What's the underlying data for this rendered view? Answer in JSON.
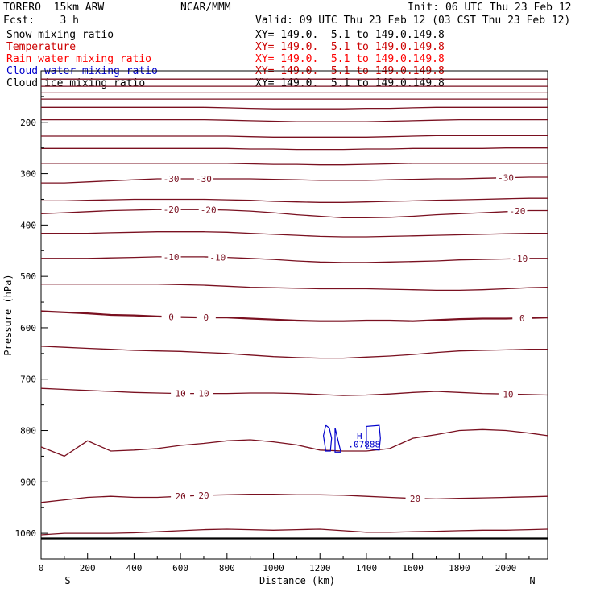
{
  "header": {
    "model": "TORERO  15km ARW",
    "center": "NCAR/MMM",
    "init": "Init: 06 UTC Thu 23 Feb 12",
    "fcst": "Fcst:    3 h",
    "valid": "Valid: 09 UTC Thu 23 Feb 12 (03 CST Thu 23 Feb 12)"
  },
  "legend": [
    {
      "label": "Snow mixing ratio",
      "xy": "XY= 149.0.  5.1 to 149.0.149.8",
      "color": "#000000"
    },
    {
      "label": "Temperature",
      "xy": "XY= 149.0.  5.1 to 149.0.149.8",
      "color": "#cc0000"
    },
    {
      "label": "Rain water mixing ratio",
      "xy": "XY= 149.0.  5.1 to 149.0.149.8",
      "color": "#ff0000"
    },
    {
      "label": "Cloud water mixing ratio",
      "xy": "XY= 149.0.  5.1 to 149.0.149.8",
      "color": "#0000cc"
    },
    {
      "label": "Cloud ice mixing ratio",
      "xy": "XY= 149.0.  5.1 to 149.0.149.8",
      "color": "#000000"
    }
  ],
  "chart_data": {
    "type": "contour-cross-section",
    "xlabel": "Distance (km)",
    "ylabel": "Pressure (hPa)",
    "xlim": [
      0,
      2180
    ],
    "ylim": [
      1050,
      100
    ],
    "x_ticks": [
      0,
      200,
      400,
      600,
      800,
      1000,
      1200,
      1400,
      1600,
      1800,
      2000
    ],
    "y_ticks": [
      200,
      300,
      400,
      500,
      600,
      700,
      800,
      900,
      1000
    ],
    "end_labels": {
      "left": "S",
      "right": "N"
    },
    "temperature_color": "#7a1020",
    "ground_level": 1010,
    "x": [
      0,
      100,
      200,
      300,
      400,
      500,
      600,
      700,
      800,
      900,
      1000,
      1100,
      1200,
      1300,
      1400,
      1500,
      1600,
      1700,
      1800,
      1900,
      2000,
      2100,
      2180
    ],
    "temperature_contours": [
      {
        "values": [
          116,
          116,
          116,
          116,
          116,
          116,
          116,
          116,
          116,
          116,
          116,
          116,
          116,
          116,
          116,
          116,
          116,
          116,
          116,
          116,
          116,
          116,
          116
        ]
      },
      {
        "values": [
          130,
          130,
          130,
          130,
          130,
          130,
          130,
          130,
          130,
          130,
          130,
          130,
          130,
          130,
          130,
          130,
          130,
          130,
          130,
          130,
          130,
          130,
          130
        ]
      },
      {
        "values": [
          143,
          143,
          143,
          143,
          143,
          143,
          143,
          143,
          143,
          143,
          143,
          143,
          143,
          143,
          143,
          143,
          143,
          143,
          143,
          143,
          143,
          143,
          143
        ]
      },
      {
        "values": [
          155,
          155,
          155,
          155,
          155,
          155,
          155,
          155,
          155,
          155,
          155,
          155,
          155,
          155,
          155,
          155,
          155,
          155,
          155,
          155,
          155,
          155,
          155
        ]
      },
      {
        "values": [
          171,
          171,
          171,
          171,
          171,
          171,
          171,
          171,
          172,
          173,
          174,
          174,
          174,
          174,
          173,
          173,
          172,
          171,
          171,
          171,
          171,
          171,
          171
        ]
      },
      {
        "values": [
          195,
          195,
          195,
          195,
          195,
          195,
          195,
          195,
          196,
          197,
          198,
          199,
          199,
          199,
          199,
          198,
          197,
          196,
          195,
          195,
          195,
          195,
          195
        ]
      },
      {
        "values": [
          227,
          227,
          227,
          227,
          227,
          227,
          227,
          227,
          227,
          228,
          229,
          229,
          229,
          229,
          229,
          228,
          227,
          226,
          226,
          226,
          226,
          226,
          226
        ]
      },
      {
        "values": [
          251,
          251,
          251,
          251,
          251,
          251,
          251,
          251,
          251,
          252,
          252,
          253,
          253,
          253,
          252,
          252,
          251,
          251,
          251,
          251,
          250,
          250,
          250
        ]
      },
      {
        "values": [
          280,
          280,
          280,
          280,
          280,
          280,
          280,
          280,
          280,
          281,
          282,
          282,
          283,
          283,
          282,
          281,
          280,
          280,
          280,
          280,
          280,
          280,
          280
        ]
      },
      {
        "values": [
          318,
          318,
          316,
          314,
          312,
          310,
          310,
          310,
          310,
          310,
          311,
          312,
          313,
          313,
          313,
          312,
          311,
          310,
          310,
          309,
          308,
          307,
          307
        ],
        "label": "-30",
        "label_x": [
          560,
          700,
          2000
        ]
      },
      {
        "values": [
          353,
          353,
          352,
          351,
          350,
          350,
          350,
          350,
          351,
          352,
          354,
          355,
          356,
          356,
          355,
          354,
          353,
          352,
          351,
          350,
          349,
          348,
          348
        ]
      },
      {
        "values": [
          378,
          376,
          374,
          372,
          371,
          370,
          370,
          370,
          371,
          373,
          376,
          380,
          383,
          386,
          386,
          385,
          383,
          380,
          378,
          376,
          374,
          372,
          372
        ],
        "label": "-20",
        "label_x": [
          560,
          720,
          2050
        ]
      },
      {
        "values": [
          416,
          416,
          416,
          415,
          414,
          413,
          413,
          413,
          414,
          416,
          418,
          420,
          422,
          423,
          423,
          422,
          421,
          420,
          419,
          418,
          417,
          416,
          416
        ]
      },
      {
        "values": [
          465,
          465,
          465,
          464,
          463,
          462,
          462,
          462,
          463,
          465,
          467,
          470,
          472,
          473,
          473,
          472,
          471,
          470,
          468,
          467,
          466,
          465,
          465
        ],
        "label": "-10",
        "label_x": [
          560,
          760,
          2060
        ]
      },
      {
        "values": [
          515,
          515,
          515,
          515,
          515,
          515,
          516,
          517,
          519,
          521,
          522,
          523,
          524,
          524,
          524,
          525,
          526,
          527,
          527,
          526,
          524,
          522,
          521
        ]
      },
      {
        "values": [
          568,
          570,
          572,
          575,
          576,
          578,
          579,
          580,
          580,
          582,
          584,
          586,
          587,
          587,
          586,
          586,
          587,
          585,
          583,
          582,
          582,
          581,
          580
        ],
        "label": "0",
        "label_x": [
          560,
          710,
          2070
        ],
        "bold": true
      },
      {
        "values": [
          636,
          638,
          640,
          642,
          644,
          645,
          646,
          648,
          650,
          653,
          656,
          658,
          659,
          659,
          657,
          655,
          652,
          648,
          645,
          644,
          643,
          642,
          642
        ]
      },
      {
        "values": [
          718,
          720,
          722,
          724,
          726,
          727,
          728,
          728,
          728,
          727,
          727,
          728,
          730,
          732,
          731,
          729,
          726,
          724,
          726,
          728,
          729,
          730,
          731
        ],
        "label": "10",
        "label_x": [
          600,
          700,
          2010
        ]
      },
      {
        "values": [
          832,
          850,
          820,
          840,
          838,
          835,
          829,
          825,
          820,
          818,
          822,
          828,
          838,
          840,
          840,
          835,
          815,
          808,
          800,
          798,
          800,
          805,
          810
        ]
      },
      {
        "values": [
          940,
          935,
          930,
          928,
          930,
          930,
          928,
          926,
          925,
          924,
          924,
          925,
          925,
          926,
          928,
          930,
          932,
          933,
          932,
          931,
          930,
          929,
          928
        ],
        "label": "20",
        "label_x": [
          600,
          700,
          1610
        ]
      },
      {
        "values": [
          1003,
          1000,
          1000,
          1000,
          999,
          997,
          995,
          993,
          992,
          993,
          994,
          993,
          992,
          995,
          998,
          998,
          997,
          996,
          995,
          994,
          994,
          993,
          992
        ]
      }
    ],
    "cloud_water": {
      "high_label": "H",
      "max_value": ".07888",
      "high_x": 1370,
      "high_p": 810,
      "value_p": 825
    },
    "cloud_water_contours": [
      {
        "x": [
          1225,
          1215,
          1225,
          1245,
          1250,
          1240,
          1225
        ],
        "y": [
          790,
          810,
          840,
          840,
          815,
          795,
          790
        ]
      },
      {
        "x": [
          1265,
          1265,
          1290,
          1265
        ],
        "y": [
          795,
          842,
          842,
          795
        ]
      },
      {
        "x": [
          1400,
          1400,
          1455,
          1460,
          1455,
          1400
        ],
        "y": [
          835,
          792,
          790,
          815,
          838,
          835
        ]
      }
    ]
  }
}
